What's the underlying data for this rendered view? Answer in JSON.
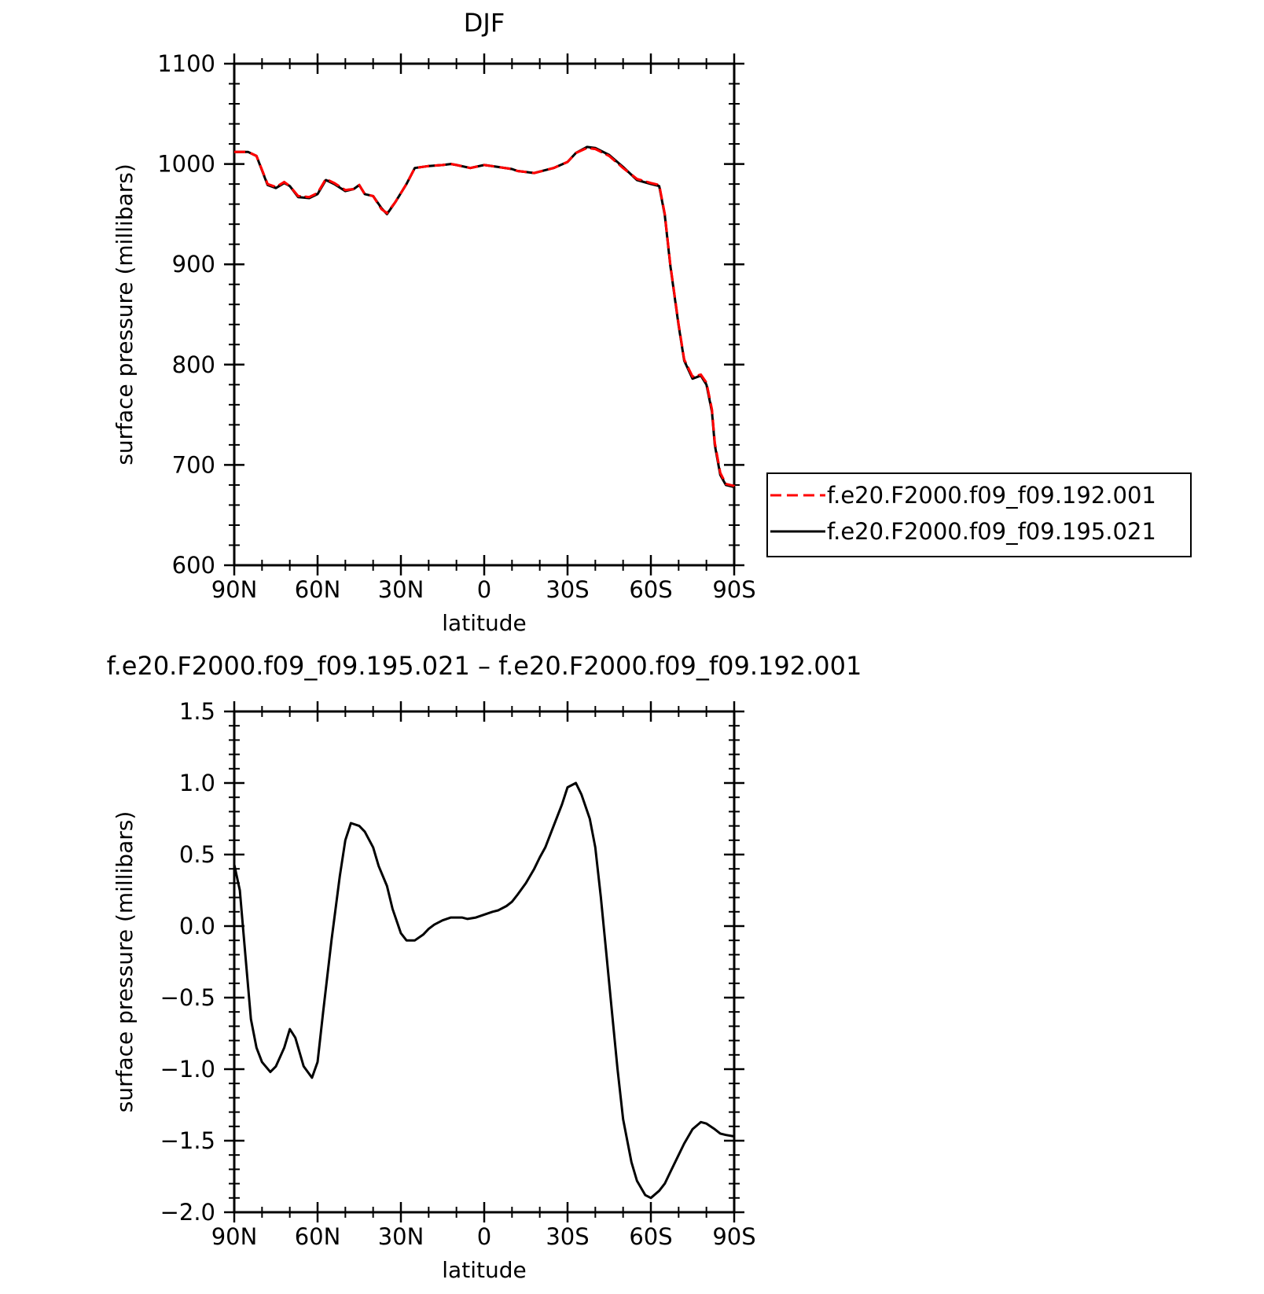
{
  "figure_title": "DJF",
  "chart_data": [
    {
      "type": "line",
      "title": "DJF",
      "xlabel": "latitude",
      "ylabel": "surface pressure (millibars)",
      "x_ticks": [
        "90N",
        "60N",
        "30N",
        "0",
        "30S",
        "60S",
        "90S"
      ],
      "x_tick_values": [
        90,
        60,
        30,
        0,
        -30,
        -60,
        -90
      ],
      "xlim": [
        90,
        -90
      ],
      "y_ticks": [
        "600",
        "700",
        "800",
        "900",
        "1000",
        "1100"
      ],
      "y_tick_values": [
        600,
        700,
        800,
        900,
        1000,
        1100
      ],
      "ylim": [
        600,
        1100
      ],
      "grid": false,
      "legend_position": "right",
      "x": [
        90,
        85,
        82,
        78,
        75,
        72,
        70,
        67,
        63,
        60,
        57,
        54,
        50,
        47,
        45,
        43,
        40,
        37,
        35,
        32,
        28,
        25,
        20,
        15,
        12,
        10,
        5,
        0,
        -5,
        -10,
        -12,
        -15,
        -18,
        -25,
        -30,
        -33,
        -37,
        -40,
        -45,
        -50,
        -55,
        -60,
        -63,
        -65,
        -67,
        -70,
        -72,
        -75,
        -78,
        -80,
        -82,
        -83,
        -85,
        -87,
        -90
      ],
      "series": [
        {
          "name": "f.e20.F2000.f09_f09.192.001",
          "color": "#ff0000",
          "dash": "dashed",
          "values": [
            1012,
            1012,
            1008,
            980,
            977,
            982,
            978,
            968,
            967,
            971,
            985,
            981,
            974,
            975,
            979,
            970,
            968,
            955,
            951,
            962,
            980,
            996,
            998,
            999,
            1000,
            999,
            996,
            999,
            997,
            995,
            993,
            992,
            991,
            996,
            1002,
            1011,
            1016,
            1015,
            1008,
            996,
            985,
            981,
            979,
            950,
            900,
            840,
            805,
            788,
            790,
            782,
            755,
            722,
            692,
            681,
            679
          ]
        },
        {
          "name": "f.e20.F2000.f09_f09.195.021",
          "color": "#000000",
          "dash": "solid",
          "values": [
            1012,
            1012,
            1008,
            979,
            976,
            981,
            978,
            967,
            966,
            970,
            984,
            980,
            973,
            975,
            979,
            970,
            968,
            956,
            950,
            962,
            980,
            996,
            998,
            999,
            1000,
            999,
            996,
            999,
            997,
            995,
            993,
            992,
            991,
            996,
            1002,
            1011,
            1017,
            1016,
            1009,
            997,
            984,
            980,
            978,
            949,
            899,
            839,
            804,
            786,
            789,
            780,
            753,
            720,
            690,
            680,
            678
          ]
        }
      ]
    },
    {
      "type": "line",
      "title": "f.e20.F2000.f09_f09.195.021 – f.e20.F2000.f09_f09.192.001",
      "xlabel": "latitude",
      "ylabel": "surface pressure (millibars)",
      "x_ticks": [
        "90N",
        "60N",
        "30N",
        "0",
        "30S",
        "60S",
        "90S"
      ],
      "x_tick_values": [
        90,
        60,
        30,
        0,
        -30,
        -60,
        -90
      ],
      "xlim": [
        90,
        -90
      ],
      "y_ticks": [
        "−2.0",
        "−1.5",
        "−1.0",
        "−0.5",
        "0.0",
        "0.5",
        "1.0",
        "1.5"
      ],
      "y_tick_values": [
        -2.0,
        -1.5,
        -1.0,
        -0.5,
        0.0,
        0.5,
        1.0,
        1.5
      ],
      "ylim": [
        -2.0,
        1.5
      ],
      "grid": false,
      "x": [
        90,
        88,
        86,
        84,
        82,
        80,
        77,
        75,
        72,
        70,
        68,
        65,
        62,
        60,
        58,
        55,
        52,
        50,
        48,
        45,
        43,
        40,
        38,
        35,
        33,
        30,
        28,
        25,
        22,
        20,
        18,
        15,
        12,
        8,
        6,
        3,
        0,
        -3,
        -5,
        -8,
        -10,
        -12,
        -15,
        -18,
        -20,
        -22,
        -25,
        -28,
        -30,
        -33,
        -35,
        -38,
        -40,
        -42,
        -44,
        -46,
        -48,
        -50,
        -53,
        -55,
        -58,
        -60,
        -63,
        -65,
        -67,
        -70,
        -72,
        -75,
        -78,
        -80,
        -83,
        -85,
        -87,
        -90
      ],
      "series": [
        {
          "values": [
            0.43,
            0.25,
            -0.2,
            -0.65,
            -0.85,
            -0.95,
            -1.02,
            -0.98,
            -0.85,
            -0.72,
            -0.78,
            -0.98,
            -1.06,
            -0.95,
            -0.6,
            -0.1,
            0.35,
            0.6,
            0.72,
            0.7,
            0.66,
            0.55,
            0.42,
            0.28,
            0.12,
            -0.05,
            -0.1,
            -0.1,
            -0.06,
            -0.02,
            0.01,
            0.04,
            0.06,
            0.06,
            0.05,
            0.06,
            0.08,
            0.1,
            0.11,
            0.14,
            0.17,
            0.22,
            0.3,
            0.4,
            0.48,
            0.55,
            0.7,
            0.85,
            0.97,
            1.0,
            0.92,
            0.75,
            0.55,
            0.2,
            -0.2,
            -0.6,
            -1.0,
            -1.35,
            -1.65,
            -1.78,
            -1.88,
            -1.9,
            -1.85,
            -1.8,
            -1.72,
            -1.6,
            -1.52,
            -1.42,
            -1.37,
            -1.38,
            -1.42,
            -1.45,
            -1.46,
            -1.47
          ]
        }
      ]
    }
  ]
}
